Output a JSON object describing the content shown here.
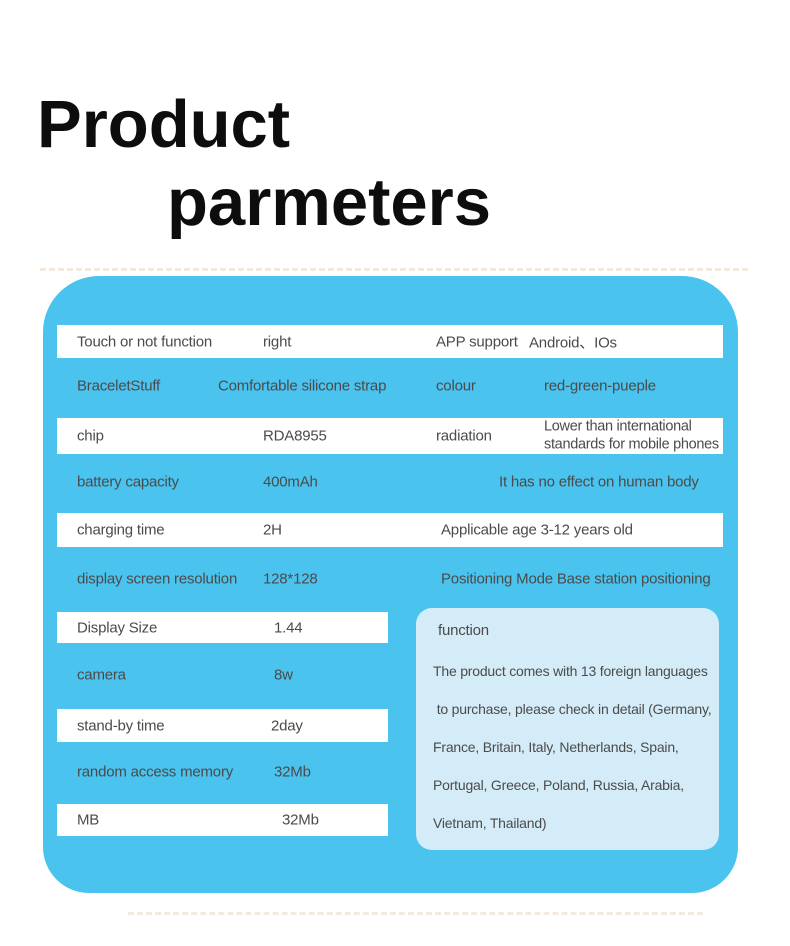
{
  "title": {
    "line1": "Product",
    "line2": "parmeters"
  },
  "colors": {
    "panel_blue": "#4ac3ee",
    "function_box_blue": "#d4ecf8",
    "strip_white": "#ffffff",
    "body_text": "#4b4b4b",
    "title_black": "#0d0d0d",
    "dashed_line_tan": "#e8d7bf"
  },
  "panel": {
    "rows": [
      {
        "label": "Touch or not function",
        "value": "right",
        "label2": "APP support",
        "value2": "Android、IOs"
      },
      {
        "label": "BraceletStuff",
        "value": "Comfortable silicone strap",
        "label2": "colour",
        "value2": "red-green-pueple"
      },
      {
        "label": "chip",
        "value": "RDA8955",
        "label2": "radiation",
        "value2": "Lower than international standards for mobile phones"
      },
      {
        "label": "battery capacity",
        "value": "400mAh",
        "note": "It has no effect on human body"
      },
      {
        "label": "charging time",
        "value": "2H",
        "note": "Applicable age 3-12 years old"
      },
      {
        "label": "display screen resolution",
        "value": "128*128",
        "note": "Positioning Mode Base station positioning"
      },
      {
        "label": "Display Size",
        "value": "1.44"
      },
      {
        "label": "camera",
        "value": "8w"
      },
      {
        "label": "stand-by time",
        "value": "2day"
      },
      {
        "label": "random access memory",
        "value": "32Mb"
      },
      {
        "label": "MB",
        "value": "32Mb"
      }
    ],
    "function_box": {
      "title": "function",
      "lines": [
        "The product comes with 13 foreign languages",
        " to purchase, please check in detail (Germany,",
        "France, Britain, Italy, Netherlands, Spain,",
        "Portugal, Greece, Poland, Russia, Arabia,",
        "Vietnam, Thailand)"
      ]
    }
  }
}
